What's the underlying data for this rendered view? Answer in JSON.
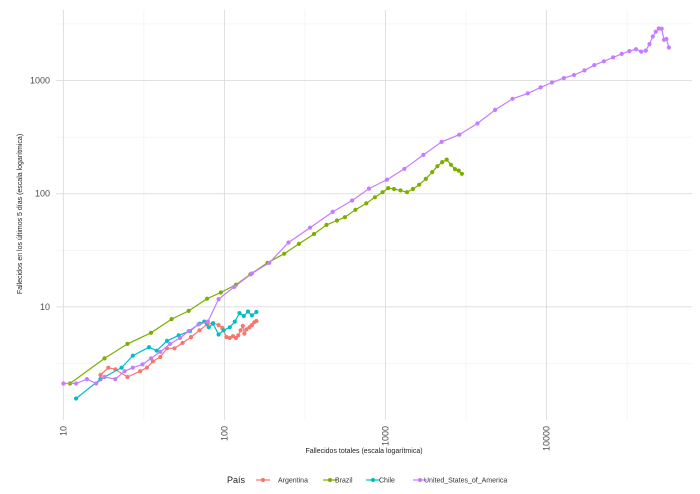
{
  "chart_data": {
    "type": "line",
    "title": "",
    "xlabel": "Fallecidos totales (escala logarítmica)",
    "ylabel": "Fallecidos en los últimos 5 días (escala logarítmica)",
    "x_scale": "log10",
    "y_scale": "log10",
    "xlim": [
      9,
      80000
    ],
    "ylim": [
      1.0,
      4200
    ],
    "x_ticks": [
      10,
      100,
      1000,
      10000
    ],
    "x_tick_labels": [
      "10",
      "100",
      "1000",
      "10000"
    ],
    "y_ticks": [
      10,
      100,
      1000
    ],
    "y_tick_labels": [
      "10",
      "100",
      "1000"
    ],
    "grid": true,
    "legend": {
      "title": "País",
      "position": "bottom"
    },
    "series": [
      {
        "name": "Argentina",
        "color": "#F8766D",
        "points": [
          [
            17,
            2.5
          ],
          [
            19,
            2.9
          ],
          [
            21,
            2.8
          ],
          [
            25,
            2.4
          ],
          [
            30,
            2.7
          ],
          [
            33,
            2.9
          ],
          [
            36,
            3.3
          ],
          [
            40,
            3.6
          ],
          [
            44,
            4.3
          ],
          [
            49,
            4.3
          ],
          [
            55,
            4.8
          ],
          [
            62,
            5.4
          ],
          [
            70,
            6.2
          ],
          [
            78,
            7.0
          ],
          [
            85,
            7.2
          ],
          [
            92,
            6.9
          ],
          [
            97,
            6.5
          ],
          [
            103,
            5.4
          ],
          [
            108,
            5.3
          ],
          [
            113,
            5.5
          ],
          [
            118,
            5.3
          ],
          [
            122,
            5.6
          ],
          [
            126,
            6.2
          ],
          [
            130,
            6.8
          ],
          [
            133,
            5.8
          ],
          [
            137,
            6.3
          ],
          [
            143,
            6.6
          ],
          [
            148,
            6.9
          ],
          [
            153,
            7.3
          ],
          [
            158,
            7.5
          ]
        ]
      },
      {
        "name": "Brazil",
        "color": "#7CAE00",
        "points": [
          [
            11,
            2.1
          ],
          [
            18,
            3.5
          ],
          [
            25,
            4.7
          ],
          [
            35,
            5.9
          ],
          [
            47,
            7.8
          ],
          [
            60,
            9.2
          ],
          [
            78,
            11.8
          ],
          [
            95,
            13.4
          ],
          [
            118,
            15.7
          ],
          [
            145,
            19.4
          ],
          [
            185,
            24.5
          ],
          [
            235,
            29.5
          ],
          [
            290,
            36
          ],
          [
            360,
            44
          ],
          [
            430,
            53
          ],
          [
            500,
            58
          ],
          [
            560,
            62
          ],
          [
            650,
            72
          ],
          [
            760,
            82
          ],
          [
            860,
            93
          ],
          [
            960,
            103
          ],
          [
            1040,
            112
          ],
          [
            1130,
            110
          ],
          [
            1240,
            107
          ],
          [
            1360,
            103
          ],
          [
            1480,
            110
          ],
          [
            1620,
            120
          ],
          [
            1780,
            135
          ],
          [
            1950,
            155
          ],
          [
            2100,
            175
          ],
          [
            2250,
            190
          ],
          [
            2400,
            200
          ],
          [
            2550,
            180
          ],
          [
            2700,
            165
          ],
          [
            2850,
            160
          ],
          [
            2980,
            150
          ]
        ]
      },
      {
        "name": "Chile",
        "color": "#00BFC4",
        "points": [
          [
            12,
            1.55
          ],
          [
            17,
            2.3
          ],
          [
            23,
            2.9
          ],
          [
            27,
            3.7
          ],
          [
            34,
            4.4
          ],
          [
            38,
            4.1
          ],
          [
            44,
            5.0
          ],
          [
            52,
            5.6
          ],
          [
            61,
            6.1
          ],
          [
            70,
            7.1
          ],
          [
            75,
            7.4
          ],
          [
            80,
            6.6
          ],
          [
            85,
            7.1
          ],
          [
            92,
            5.7
          ],
          [
            99,
            6.2
          ],
          [
            108,
            6.6
          ],
          [
            116,
            7.4
          ],
          [
            124,
            8.8
          ],
          [
            132,
            8.3
          ],
          [
            140,
            9.1
          ],
          [
            148,
            8.4
          ],
          [
            158,
            9.0
          ]
        ]
      },
      {
        "name": "United_States_of_America",
        "color": "#C77CFF",
        "points": [
          [
            10,
            2.1
          ],
          [
            12,
            2.1
          ],
          [
            14,
            2.3
          ],
          [
            16,
            2.1
          ],
          [
            18,
            2.4
          ],
          [
            21,
            2.3
          ],
          [
            24,
            2.7
          ],
          [
            27,
            2.9
          ],
          [
            31,
            3.1
          ],
          [
            35,
            3.5
          ],
          [
            40,
            4.0
          ],
          [
            46,
            4.7
          ],
          [
            53,
            5.3
          ],
          [
            60,
            6.1
          ],
          [
            69,
            7.0
          ],
          [
            79,
            7.4
          ],
          [
            92,
            11.7
          ],
          [
            115,
            15.0
          ],
          [
            148,
            19.7
          ],
          [
            190,
            24.5
          ],
          [
            250,
            37
          ],
          [
            340,
            50
          ],
          [
            470,
            69
          ],
          [
            620,
            87
          ],
          [
            790,
            111
          ],
          [
            1020,
            133
          ],
          [
            1310,
            166
          ],
          [
            1720,
            220
          ],
          [
            2230,
            287
          ],
          [
            2870,
            332
          ],
          [
            3720,
            417
          ],
          [
            4790,
            550
          ],
          [
            6150,
            690
          ],
          [
            7650,
            770
          ],
          [
            9180,
            870
          ],
          [
            10800,
            960
          ],
          [
            12800,
            1050
          ],
          [
            14800,
            1120
          ],
          [
            17200,
            1230
          ],
          [
            19800,
            1370
          ],
          [
            22700,
            1480
          ],
          [
            25900,
            1600
          ],
          [
            29300,
            1720
          ],
          [
            32700,
            1820
          ],
          [
            35900,
            1890
          ],
          [
            38700,
            1800
          ],
          [
            41300,
            1840
          ],
          [
            43600,
            2100
          ],
          [
            45700,
            2450
          ],
          [
            47700,
            2700
          ],
          [
            49800,
            2880
          ],
          [
            51900,
            2870
          ],
          [
            53600,
            2290
          ],
          [
            55500,
            2330
          ],
          [
            57500,
            1960
          ]
        ]
      }
    ]
  }
}
